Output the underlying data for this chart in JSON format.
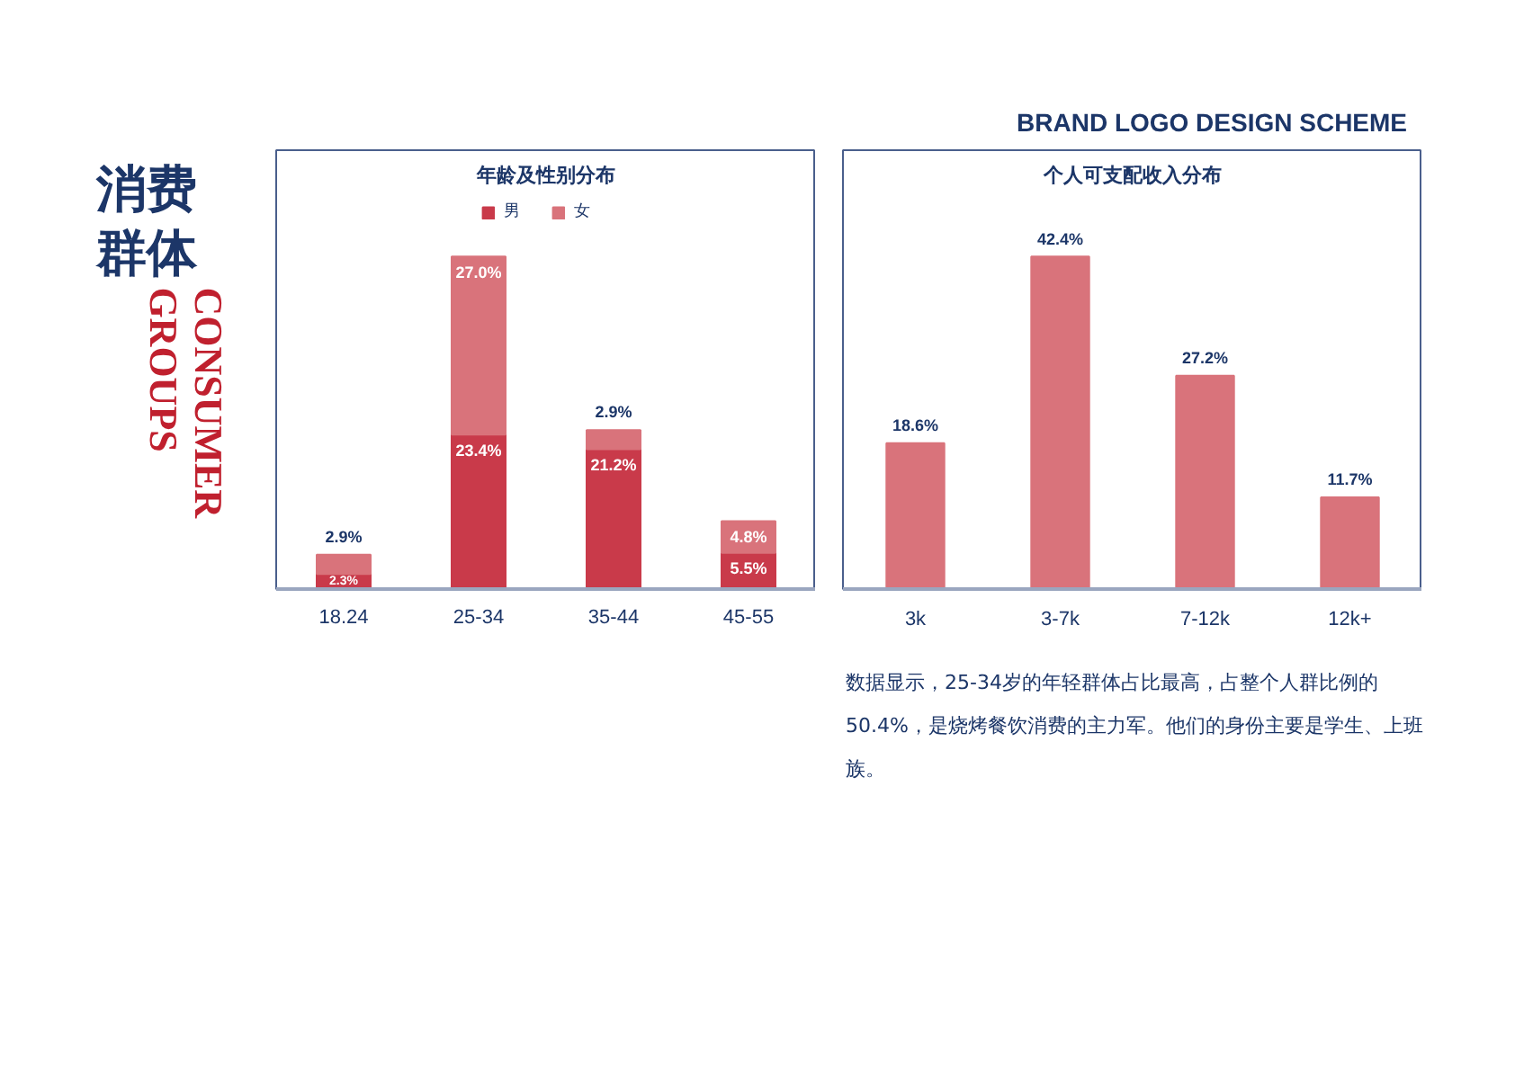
{
  "chart_data": [
    {
      "type": "other",
      "title": "消费群体",
      "subtitle": "CONSUMER GROUPS",
      "annotations": [
        "BRAND LOGO DESIGN SCHEME"
      ]
    },
    {
      "type": "bar",
      "title": "年龄及性别分布",
      "categories": [
        "18.24",
        "25-34",
        "35-44",
        "45-55"
      ],
      "stacked": true,
      "legend": "top",
      "grid": false,
      "series": [
        {
          "name": "男",
          "color": "#c93a4a",
          "values": [
            2.3,
            23.4,
            21.2,
            5.5
          ],
          "value_labels": [
            "2.3%",
            "23.4%",
            "21.2%",
            "5.5%"
          ]
        },
        {
          "name": "女",
          "color": "#d9737b",
          "values": [
            2.9,
            27.0,
            2.9,
            4.8
          ],
          "value_labels": [
            "2.9%",
            "27.0%",
            "2.9%",
            "4.8%"
          ]
        }
      ]
    },
    {
      "type": "bar",
      "title": "个人可支配收入分布",
      "categories": [
        "3k",
        "3-7k",
        "7-12k",
        "12k+"
      ],
      "grid": false,
      "series": [
        {
          "color": "#d9737b",
          "values": [
            18.6,
            42.4,
            27.2,
            11.7
          ],
          "value_labels": [
            "18.6%",
            "42.4%",
            "27.2%",
            "11.7%"
          ]
        }
      ],
      "annotations": [
        "数据显示，25-34岁的年轻群体占比最高，占整个人群比例的50.4%，是烧烤餐饮消费的主力军。他们的身份主要是学生、上班族。"
      ]
    }
  ]
}
